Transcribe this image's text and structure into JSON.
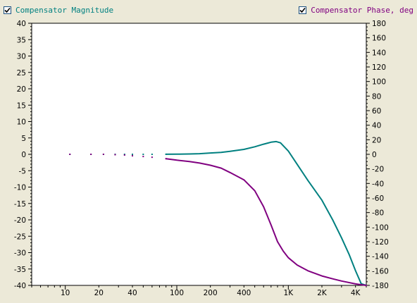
{
  "legend": {
    "magnitude": {
      "label": "Compensator Magnitude",
      "checked": true,
      "color": "#008080"
    },
    "phase": {
      "label": "Compensator Phase, deg",
      "checked": true,
      "color": "#800080"
    }
  },
  "chart_data": {
    "type": "line",
    "title": "",
    "xlabel": "",
    "ylabel": "",
    "x_scale": "log",
    "xlim": [
      5,
      5000
    ],
    "ylim_left": [
      -40,
      40
    ],
    "ylim_right": [
      -180,
      180
    ],
    "grid": false,
    "x_ticks": [
      {
        "value": 10,
        "label": "10"
      },
      {
        "value": 20,
        "label": "20"
      },
      {
        "value": 40,
        "label": "40"
      },
      {
        "value": 100,
        "label": "100"
      },
      {
        "value": 200,
        "label": "200"
      },
      {
        "value": 400,
        "label": "400"
      },
      {
        "value": 1000,
        "label": "1K"
      },
      {
        "value": 2000,
        "label": "2K"
      },
      {
        "value": 4000,
        "label": "4K"
      }
    ],
    "y_left_ticks": [
      "40",
      "35",
      "30",
      "25",
      "20",
      "15",
      "10",
      "5",
      "0",
      "-5",
      "-10",
      "-15",
      "-20",
      "-25",
      "-30",
      "-35",
      "-40"
    ],
    "y_right_ticks": [
      "180",
      "160",
      "140",
      "120",
      "100",
      "80",
      "60",
      "40",
      "20",
      "0",
      "-20",
      "-40",
      "-60",
      "-80",
      "-100",
      "-120",
      "-140",
      "-160",
      "-180"
    ],
    "series": [
      {
        "id": "magnitude",
        "axis": "left",
        "color": "#008080",
        "x": [
          11,
          17,
          22,
          28,
          34,
          40,
          50,
          60,
          80,
          100,
          130,
          160,
          200,
          250,
          300,
          400,
          500,
          600,
          700,
          780,
          850,
          1000,
          1500,
          2000,
          2500,
          3000,
          3500,
          4000,
          4500,
          5000
        ],
        "y": [
          0,
          0,
          0,
          0,
          0,
          0,
          0,
          0,
          0.02,
          0.05,
          0.1,
          0.2,
          0.4,
          0.6,
          0.9,
          1.5,
          2.3,
          3.1,
          3.7,
          3.9,
          3.5,
          1.0,
          -8.0,
          -14.0,
          -20.0,
          -25.5,
          -30.5,
          -35.5,
          -39.5,
          -40
        ]
      },
      {
        "id": "phase",
        "axis": "right",
        "color": "#800080",
        "x": [
          11,
          17,
          22,
          28,
          34,
          40,
          50,
          60,
          80,
          100,
          130,
          160,
          200,
          250,
          300,
          400,
          500,
          600,
          700,
          800,
          900,
          1000,
          1200,
          1500,
          2000,
          2500,
          3000,
          4000,
          5000
        ],
        "y": [
          0,
          0,
          0,
          -0.5,
          -1,
          -2,
          -3,
          -4,
          -6,
          -8,
          -10,
          -12,
          -15,
          -19,
          -25,
          -35,
          -50,
          -72,
          -97,
          -120,
          -133,
          -142,
          -152,
          -160,
          -167,
          -171,
          -174,
          -178,
          -180
        ]
      }
    ]
  }
}
